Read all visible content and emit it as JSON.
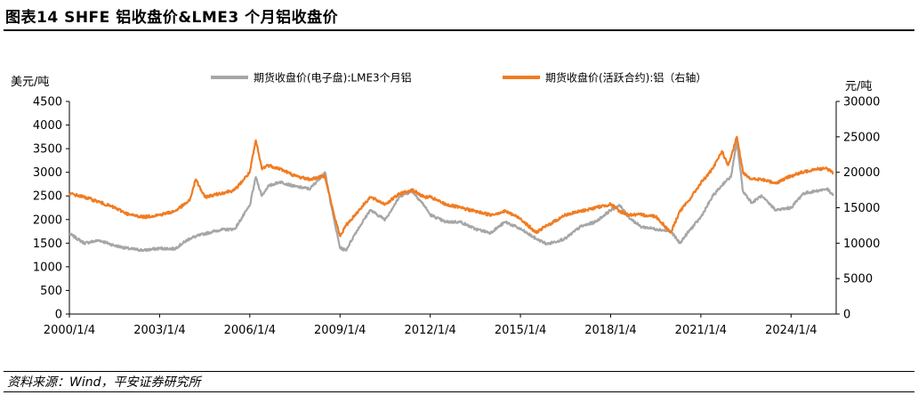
{
  "header": {
    "title": "图表14   SHFE 铝收盘价&LME3 个月铝收盘价",
    "source": "资料来源：Wind，平安证券研究所"
  },
  "chart_data": {
    "type": "line",
    "left_unit": "美元/吨",
    "right_unit": "元/吨",
    "y_left": {
      "min": 0,
      "max": 4500,
      "ticks": [
        0,
        500,
        1000,
        1500,
        2000,
        2500,
        3000,
        3500,
        4000,
        4500
      ]
    },
    "y_right": {
      "min": 0,
      "max": 30000,
      "ticks": [
        0,
        5000,
        10000,
        15000,
        20000,
        25000,
        30000
      ]
    },
    "x_range": [
      2000.0,
      2025.5
    ],
    "x_ticks": [
      {
        "label": "2000/1/4",
        "x": 2000.0
      },
      {
        "label": "2003/1/4",
        "x": 2003.0
      },
      {
        "label": "2006/1/4",
        "x": 2006.0
      },
      {
        "label": "2009/1/4",
        "x": 2009.0
      },
      {
        "label": "2012/1/4",
        "x": 2012.0
      },
      {
        "label": "2015/1/4",
        "x": 2015.0
      },
      {
        "label": "2018/1/4",
        "x": 2018.0
      },
      {
        "label": "2021/1/4",
        "x": 2021.0
      },
      {
        "label": "2024/1/4",
        "x": 2024.0
      }
    ],
    "legend_position": "top",
    "series": [
      {
        "name": "期货收盘价(电子盘):LME3个月铝",
        "axis": "left",
        "color": "#a6a6a6",
        "x": [
          2000.0,
          2000.5,
          2001.0,
          2001.5,
          2002.0,
          2002.5,
          2003.0,
          2003.5,
          2004.0,
          2004.5,
          2005.0,
          2005.5,
          2006.0,
          2006.2,
          2006.4,
          2006.6,
          2007.0,
          2007.5,
          2008.0,
          2008.5,
          2008.8,
          2009.0,
          2009.2,
          2009.5,
          2010.0,
          2010.5,
          2011.0,
          2011.4,
          2011.8,
          2012.0,
          2012.5,
          2013.0,
          2013.5,
          2014.0,
          2014.5,
          2015.0,
          2015.5,
          2015.9,
          2016.5,
          2017.0,
          2017.5,
          2018.0,
          2018.3,
          2018.6,
          2019.0,
          2019.5,
          2020.0,
          2020.3,
          2020.6,
          2021.0,
          2021.4,
          2021.8,
          2022.0,
          2022.2,
          2022.4,
          2022.7,
          2023.0,
          2023.5,
          2024.0,
          2024.4,
          2024.8,
          2025.2,
          2025.4
        ],
        "y": [
          1700,
          1500,
          1560,
          1450,
          1380,
          1350,
          1390,
          1380,
          1600,
          1700,
          1780,
          1800,
          2300,
          2900,
          2500,
          2700,
          2800,
          2700,
          2650,
          3000,
          2000,
          1400,
          1350,
          1700,
          2200,
          2000,
          2500,
          2600,
          2300,
          2100,
          1950,
          1950,
          1800,
          1720,
          1950,
          1800,
          1600,
          1480,
          1600,
          1850,
          1950,
          2200,
          2300,
          2050,
          1850,
          1800,
          1750,
          1500,
          1750,
          2050,
          2500,
          2800,
          2900,
          3650,
          2600,
          2350,
          2500,
          2200,
          2250,
          2550,
          2600,
          2650,
          2500
        ]
      },
      {
        "name": "期货收盘价(活跃合约):铝（右轴）",
        "axis": "right",
        "color": "#f07c22",
        "x": [
          2000.0,
          2000.5,
          2001.0,
          2001.5,
          2002.0,
          2002.5,
          2003.0,
          2003.5,
          2004.0,
          2004.2,
          2004.5,
          2005.0,
          2005.5,
          2006.0,
          2006.2,
          2006.4,
          2006.6,
          2007.0,
          2007.5,
          2008.0,
          2008.5,
          2008.8,
          2009.0,
          2009.2,
          2009.5,
          2010.0,
          2010.5,
          2011.0,
          2011.4,
          2011.8,
          2012.0,
          2012.5,
          2013.0,
          2013.5,
          2014.0,
          2014.5,
          2015.0,
          2015.5,
          2015.9,
          2016.5,
          2017.0,
          2017.5,
          2018.0,
          2018.3,
          2018.6,
          2019.0,
          2019.5,
          2020.0,
          2020.3,
          2020.6,
          2021.0,
          2021.4,
          2021.7,
          2021.9,
          2022.0,
          2022.2,
          2022.4,
          2022.7,
          2023.0,
          2023.5,
          2024.0,
          2024.4,
          2024.8,
          2025.2,
          2025.4
        ],
        "y": [
          17000,
          16500,
          15800,
          15000,
          14000,
          13700,
          14000,
          14500,
          16000,
          19000,
          16500,
          17000,
          17500,
          20000,
          24500,
          20500,
          21000,
          20500,
          19500,
          19000,
          19500,
          14000,
          11000,
          12500,
          14000,
          16500,
          15500,
          17000,
          17500,
          16500,
          16500,
          15500,
          15000,
          14500,
          14000,
          14500,
          13500,
          11500,
          12500,
          14000,
          14500,
          15000,
          15500,
          14500,
          14000,
          14000,
          13800,
          11500,
          14500,
          16000,
          18500,
          20500,
          23000,
          21000,
          22000,
          25000,
          20000,
          19000,
          19000,
          18500,
          19500,
          20000,
          20500,
          20500,
          20000
        ]
      }
    ]
  }
}
